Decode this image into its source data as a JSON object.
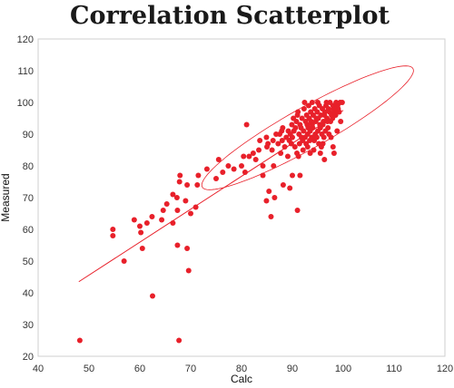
{
  "chart_data": {
    "type": "scatter",
    "title": "Correlation Scatterplot",
    "xlabel": "Calc",
    "ylabel": "Measured",
    "xlim": [
      40,
      120
    ],
    "ylim": [
      20,
      120
    ],
    "xticks": [
      40,
      50,
      60,
      70,
      80,
      90,
      100,
      110,
      120
    ],
    "yticks": [
      20,
      30,
      40,
      50,
      60,
      70,
      80,
      90,
      100,
      110,
      120
    ],
    "grid": false,
    "legend": "none",
    "color": "#e8202a",
    "points": [
      [
        48.2,
        25
      ],
      [
        67.7,
        25
      ],
      [
        62.5,
        39
      ],
      [
        69.6,
        47
      ],
      [
        56.9,
        50
      ],
      [
        67.4,
        55
      ],
      [
        69.3,
        54
      ],
      [
        60.5,
        54
      ],
      [
        54.7,
        58
      ],
      [
        54.7,
        60
      ],
      [
        60.2,
        59
      ],
      [
        61.4,
        62
      ],
      [
        60.0,
        61
      ],
      [
        58.9,
        63
      ],
      [
        62.4,
        64
      ],
      [
        64.3,
        63
      ],
      [
        64.6,
        66
      ],
      [
        66.5,
        62
      ],
      [
        67.4,
        66
      ],
      [
        65.3,
        68
      ],
      [
        66.5,
        71
      ],
      [
        67.3,
        70
      ],
      [
        69.0,
        69
      ],
      [
        70.0,
        65
      ],
      [
        71.0,
        67
      ],
      [
        67.8,
        75
      ],
      [
        67.9,
        77
      ],
      [
        69.3,
        74
      ],
      [
        71.3,
        74
      ],
      [
        71.5,
        77
      ],
      [
        75.0,
        76
      ],
      [
        73.2,
        79
      ],
      [
        76.3,
        78
      ],
      [
        77.4,
        80
      ],
      [
        78.5,
        79
      ],
      [
        80.0,
        80
      ],
      [
        75.5,
        82
      ],
      [
        81.5,
        83
      ],
      [
        82.8,
        82
      ],
      [
        80.7,
        78
      ],
      [
        84.2,
        80
      ],
      [
        86.3,
        80
      ],
      [
        84.2,
        77
      ],
      [
        85.4,
        72
      ],
      [
        84.9,
        69
      ],
      [
        86.5,
        70
      ],
      [
        85.8,
        64
      ],
      [
        91.0,
        66
      ],
      [
        90.0,
        77
      ],
      [
        91.5,
        77
      ],
      [
        88.2,
        74
      ],
      [
        89.5,
        73
      ],
      [
        93.5,
        84
      ],
      [
        95.5,
        84
      ],
      [
        96.3,
        82
      ],
      [
        98.2,
        84
      ],
      [
        98.0,
        86
      ],
      [
        96.0,
        87
      ],
      [
        93.0,
        86
      ],
      [
        91.2,
        83
      ],
      [
        89.1,
        83
      ],
      [
        87.7,
        84
      ],
      [
        86.0,
        85
      ],
      [
        81.0,
        93
      ],
      [
        83.6,
        88
      ],
      [
        85.2,
        87
      ],
      [
        84.9,
        89
      ],
      [
        86.8,
        90
      ],
      [
        87.5,
        90
      ],
      [
        88.1,
        92
      ],
      [
        89.4,
        88
      ],
      [
        89.2,
        91
      ],
      [
        90.0,
        89
      ],
      [
        90.6,
        92
      ],
      [
        90.8,
        94
      ],
      [
        91.3,
        90
      ],
      [
        91.5,
        93
      ],
      [
        91.9,
        95
      ],
      [
        92.2,
        91
      ],
      [
        92.6,
        94
      ],
      [
        92.8,
        96
      ],
      [
        93.1,
        92
      ],
      [
        93.3,
        95
      ],
      [
        93.6,
        97
      ],
      [
        93.9,
        93
      ],
      [
        94.1,
        96
      ],
      [
        94.4,
        98
      ],
      [
        94.6,
        94
      ],
      [
        94.9,
        97
      ],
      [
        95.1,
        95
      ],
      [
        95.3,
        99
      ],
      [
        95.6,
        96
      ],
      [
        95.9,
        98
      ],
      [
        96.1,
        94
      ],
      [
        96.4,
        97
      ],
      [
        96.6,
        99
      ],
      [
        96.8,
        95
      ],
      [
        97.1,
        98
      ],
      [
        97.4,
        100
      ],
      [
        97.7,
        96
      ],
      [
        98.0,
        99
      ],
      [
        98.3,
        97
      ],
      [
        98.6,
        100
      ],
      [
        99.0,
        98
      ],
      [
        99.4,
        100
      ],
      [
        99.8,
        100
      ],
      [
        92.0,
        88
      ],
      [
        92.5,
        89
      ],
      [
        93.0,
        90
      ],
      [
        93.5,
        91
      ],
      [
        94.0,
        92
      ],
      [
        94.5,
        90
      ],
      [
        95.0,
        91
      ],
      [
        95.5,
        92
      ],
      [
        96.0,
        93
      ],
      [
        96.5,
        91
      ],
      [
        97.0,
        92
      ],
      [
        97.5,
        94
      ],
      [
        94.3,
        88
      ],
      [
        95.2,
        87
      ],
      [
        96.2,
        89
      ],
      [
        97.2,
        90
      ],
      [
        90.5,
        86
      ],
      [
        91.4,
        87
      ],
      [
        89.8,
        87
      ],
      [
        88.5,
        86
      ],
      [
        92.7,
        87
      ],
      [
        93.8,
        89
      ],
      [
        94.8,
        89
      ],
      [
        95.8,
        90
      ],
      [
        96.9,
        94
      ],
      [
        97.9,
        95
      ],
      [
        98.5,
        96
      ],
      [
        99.2,
        97
      ],
      [
        91.0,
        96
      ],
      [
        90.2,
        95
      ],
      [
        92.3,
        98
      ],
      [
        93.2,
        99
      ],
      [
        90.9,
        84
      ],
      [
        92.1,
        85
      ],
      [
        97.6,
        89
      ],
      [
        98.8,
        91
      ],
      [
        99.5,
        94
      ],
      [
        88.0,
        88
      ],
      [
        87.2,
        87
      ],
      [
        86.2,
        88
      ],
      [
        85.0,
        86
      ],
      [
        83.4,
        85
      ],
      [
        82.3,
        84
      ],
      [
        80.4,
        83
      ],
      [
        94.2,
        85
      ],
      [
        95.7,
        86
      ],
      [
        91.8,
        89
      ],
      [
        93.4,
        88
      ],
      [
        95.4,
        93
      ],
      [
        96.3,
        96
      ],
      [
        97.3,
        97
      ],
      [
        98.1,
        98
      ],
      [
        94.7,
        95
      ],
      [
        93.7,
        94
      ],
      [
        92.9,
        93
      ],
      [
        91.7,
        92
      ],
      [
        90.3,
        91
      ],
      [
        89.6,
        90
      ],
      [
        88.8,
        89
      ],
      [
        87.9,
        91
      ],
      [
        89.9,
        93
      ],
      [
        91.1,
        97
      ],
      [
        92.4,
        100
      ],
      [
        93.9,
        100
      ],
      [
        95.0,
        100
      ],
      [
        96.7,
        100
      ],
      [
        98.9,
        99
      ]
    ],
    "regression_line": {
      "x": [
        48,
        100
      ],
      "y": [
        43.5,
        97.5
      ]
    },
    "ellipse": {
      "center": [
        93,
        92
      ],
      "semi_axis_major": 28,
      "semi_axis_minor": 5.5,
      "angle_deg": 43
    }
  }
}
